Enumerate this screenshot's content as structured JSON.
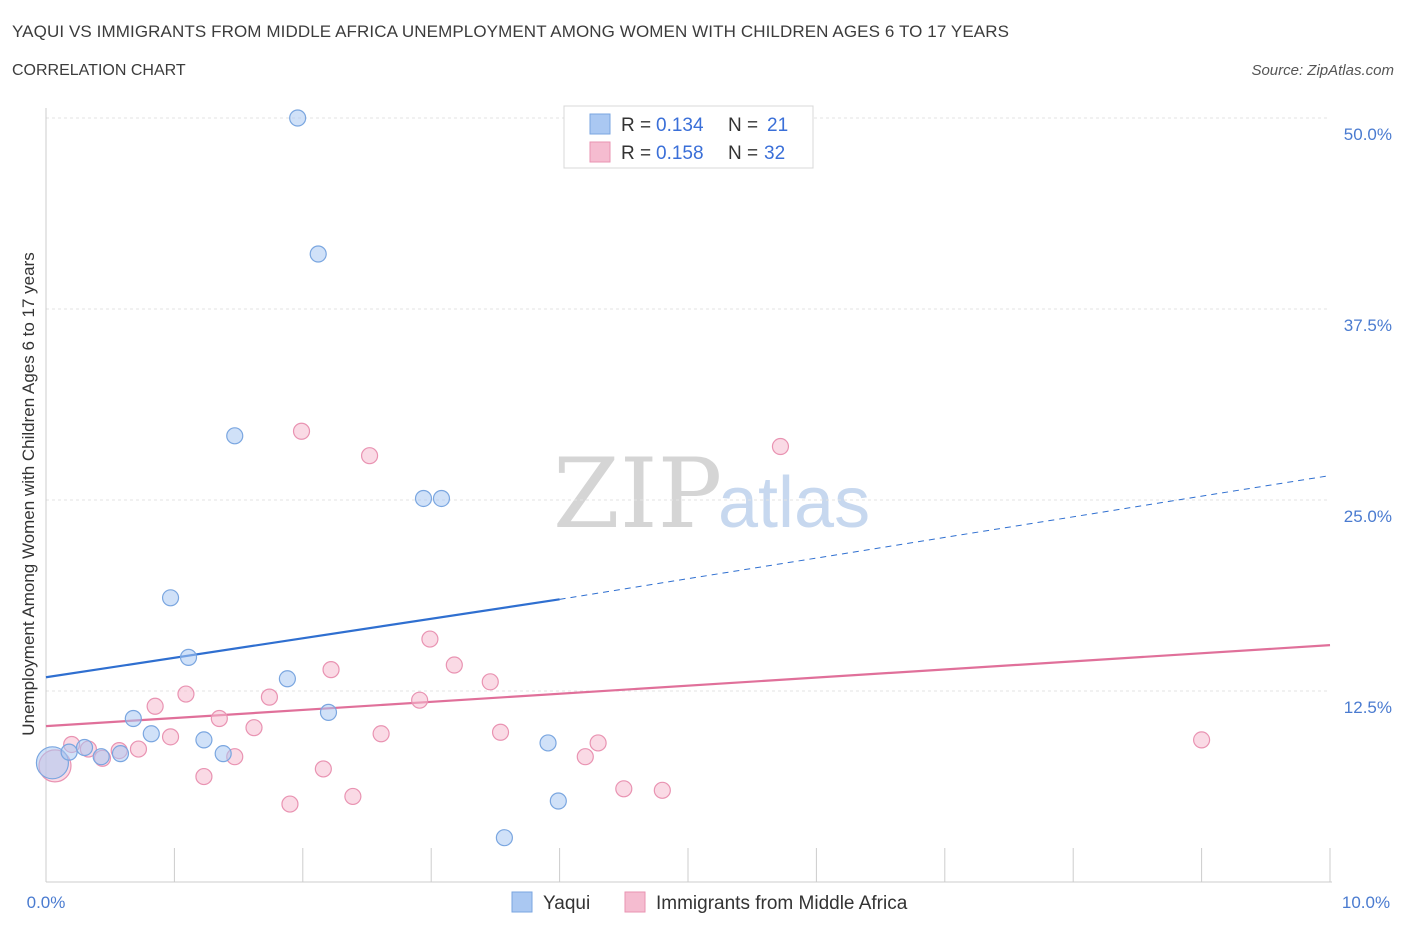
{
  "header": {
    "title": "YAQUI VS IMMIGRANTS FROM MIDDLE AFRICA UNEMPLOYMENT AMONG WOMEN WITH CHILDREN AGES 6 TO 17 YEARS",
    "subtitle": "CORRELATION CHART",
    "source": "Source: ZipAtlas.com"
  },
  "watermark": {
    "zip": "ZIP",
    "atlas": "atlas"
  },
  "colors": {
    "yaqui_fill": "#aac8f2",
    "yaqui_stroke": "#7aa6e0",
    "yaqui_line": "#2f6fd0",
    "imm_fill": "#f5bcd0",
    "imm_stroke": "#e993b2",
    "imm_line": "#e0709a",
    "axis_text": "#4a7bd0",
    "grid": "#e3e3e3"
  },
  "legend": {
    "rows": [
      {
        "r_label": "R = ",
        "r_value": "0.134",
        "n_label": "N = ",
        "n_value": "21"
      },
      {
        "r_label": "R = ",
        "r_value": "0.158",
        "n_label": "N = ",
        "n_value": "32"
      }
    ]
  },
  "chart_data": {
    "type": "scatter",
    "title": "YAQUI VS IMMIGRANTS FROM MIDDLE AFRICA UNEMPLOYMENT AMONG WOMEN WITH CHILDREN AGES 6 TO 17 YEARS",
    "xlabel": "",
    "ylabel": "Unemployment Among Women with Children Ages 6 to 17 years",
    "xlim": [
      0,
      10
    ],
    "ylim": [
      0,
      50
    ],
    "x_tick_labels": [
      "0.0%",
      "10.0%"
    ],
    "y_ticks": [
      {
        "value": 50,
        "label": "50.0%"
      },
      {
        "value": 37.5,
        "label": "37.5%"
      },
      {
        "value": 25,
        "label": "25.0%"
      },
      {
        "value": 12.5,
        "label": "12.5%"
      }
    ],
    "series": [
      {
        "name": "Yaqui",
        "points": [
          {
            "x": 0.05,
            "y": 7.8,
            "big": true
          },
          {
            "x": 0.18,
            "y": 8.5
          },
          {
            "x": 0.3,
            "y": 8.8
          },
          {
            "x": 0.43,
            "y": 8.2
          },
          {
            "x": 0.58,
            "y": 8.4
          },
          {
            "x": 0.68,
            "y": 10.7
          },
          {
            "x": 0.82,
            "y": 9.7
          },
          {
            "x": 0.97,
            "y": 18.6
          },
          {
            "x": 1.11,
            "y": 14.7
          },
          {
            "x": 1.23,
            "y": 9.3
          },
          {
            "x": 1.38,
            "y": 8.4
          },
          {
            "x": 1.47,
            "y": 29.2
          },
          {
            "x": 1.88,
            "y": 13.3
          },
          {
            "x": 1.96,
            "y": 50.0
          },
          {
            "x": 2.12,
            "y": 41.1
          },
          {
            "x": 2.2,
            "y": 11.1
          },
          {
            "x": 2.94,
            "y": 25.1
          },
          {
            "x": 3.08,
            "y": 25.1
          },
          {
            "x": 3.57,
            "y": 2.9
          },
          {
            "x": 3.91,
            "y": 9.1
          },
          {
            "x": 3.99,
            "y": 5.3
          }
        ],
        "trend": {
          "x0": 0,
          "y0": 13.4,
          "x1": 4.0,
          "y1": 18.5,
          "extend_x": 10.0,
          "extend_y": 26.6
        }
      },
      {
        "name": "Immigrants from Middle Africa",
        "points": [
          {
            "x": 0.07,
            "y": 7.6,
            "big": true
          },
          {
            "x": 0.2,
            "y": 9.0
          },
          {
            "x": 0.33,
            "y": 8.7
          },
          {
            "x": 0.44,
            "y": 8.1
          },
          {
            "x": 0.57,
            "y": 8.6
          },
          {
            "x": 0.72,
            "y": 8.7
          },
          {
            "x": 0.85,
            "y": 11.5
          },
          {
            "x": 0.97,
            "y": 9.5
          },
          {
            "x": 1.09,
            "y": 12.3
          },
          {
            "x": 1.23,
            "y": 6.9
          },
          {
            "x": 1.35,
            "y": 10.7
          },
          {
            "x": 1.47,
            "y": 8.2
          },
          {
            "x": 1.62,
            "y": 10.1
          },
          {
            "x": 1.74,
            "y": 12.1
          },
          {
            "x": 1.9,
            "y": 5.1
          },
          {
            "x": 1.99,
            "y": 29.5
          },
          {
            "x": 2.16,
            "y": 7.4
          },
          {
            "x": 2.22,
            "y": 13.9
          },
          {
            "x": 2.39,
            "y": 5.6
          },
          {
            "x": 2.52,
            "y": 27.9
          },
          {
            "x": 2.61,
            "y": 9.7
          },
          {
            "x": 2.91,
            "y": 11.9
          },
          {
            "x": 2.99,
            "y": 15.9
          },
          {
            "x": 3.18,
            "y": 14.2
          },
          {
            "x": 3.46,
            "y": 13.1
          },
          {
            "x": 3.54,
            "y": 9.8
          },
          {
            "x": 4.2,
            "y": 8.2
          },
          {
            "x": 4.3,
            "y": 9.1
          },
          {
            "x": 4.5,
            "y": 6.1
          },
          {
            "x": 4.8,
            "y": 6.0
          },
          {
            "x": 5.72,
            "y": 28.5
          },
          {
            "x": 9.0,
            "y": 9.3
          }
        ],
        "trend": {
          "x0": 0,
          "y0": 10.2,
          "x1": 10.0,
          "y1": 15.5
        }
      }
    ],
    "legend_bottom": [
      "Yaqui",
      "Immigrants from Middle Africa"
    ]
  }
}
